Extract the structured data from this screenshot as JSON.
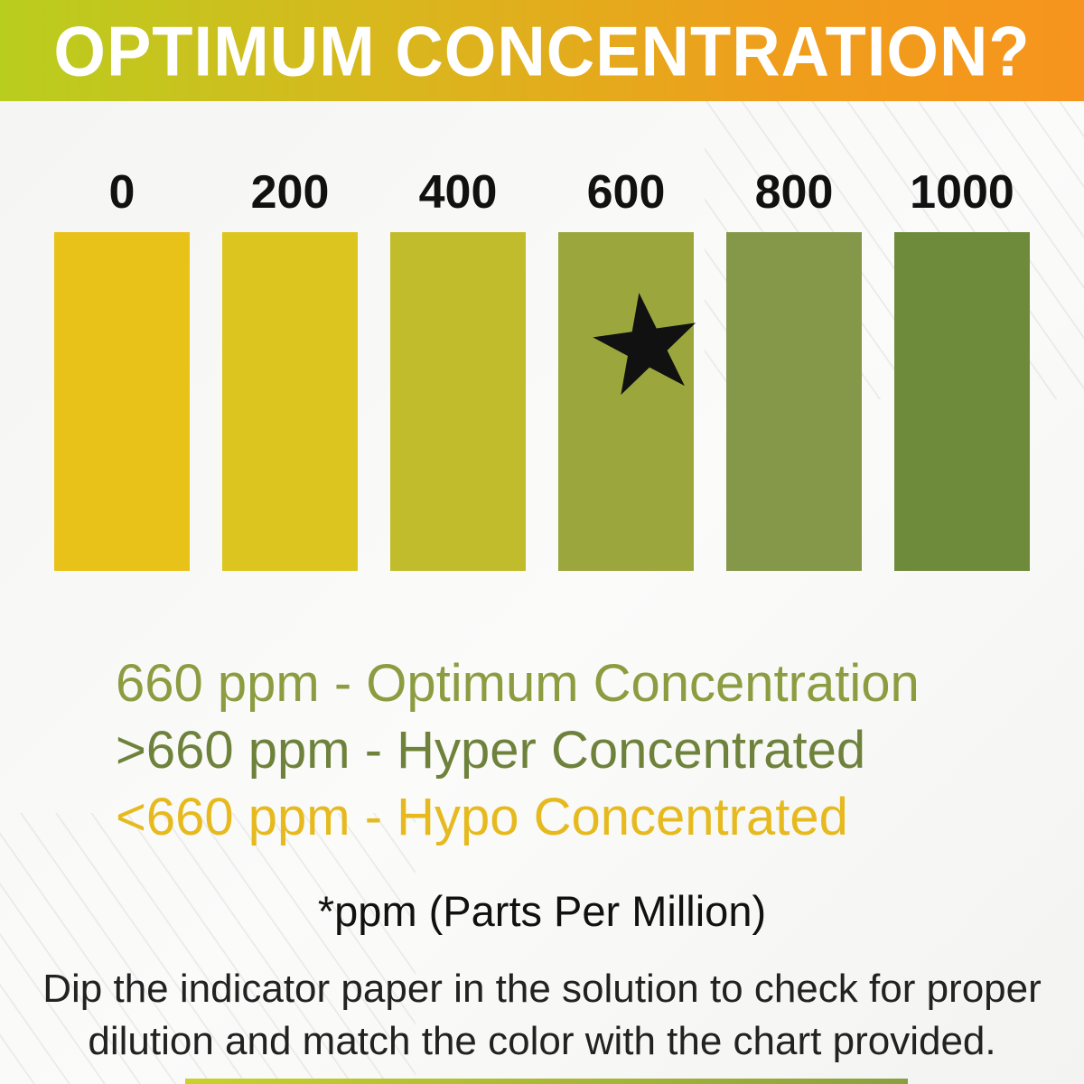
{
  "header": {
    "title": "OPTIMUM CONCENTRATION?",
    "gradient_left": "#b9cd1e",
    "gradient_right": "#f7941d"
  },
  "chart_data": {
    "type": "bar",
    "title": "Chlorine/solution concentration indicator color chart",
    "xlabel": "ppm",
    "ylabel": "",
    "categories": [
      "0",
      "200",
      "400",
      "600",
      "800",
      "1000"
    ],
    "values": [
      0,
      200,
      400,
      600,
      800,
      1000
    ],
    "colors": [
      "#e9c219",
      "#ddc51f",
      "#c1bc2b",
      "#9ba73d",
      "#85984a",
      "#6e8a3b"
    ],
    "marker": {
      "icon": "star-icon",
      "glyph": "★",
      "category": "600",
      "meaning": "optimum concentration"
    },
    "legend_position": "below",
    "grid": false
  },
  "legend": {
    "lines": [
      {
        "text": "660 ppm - Optimum Concentration",
        "color": "#8c9c40"
      },
      {
        "text": ">660 ppm - Hyper Concentrated",
        "color": "#6f823c"
      },
      {
        "text": "<660 ppm - Hypo Concentrated",
        "color": "#e6ba1e"
      }
    ]
  },
  "footnote": "*ppm (Parts Per Million)",
  "instructions": "Dip the indicator paper in the solution to check for proper dilution and match the color with the chart provided."
}
